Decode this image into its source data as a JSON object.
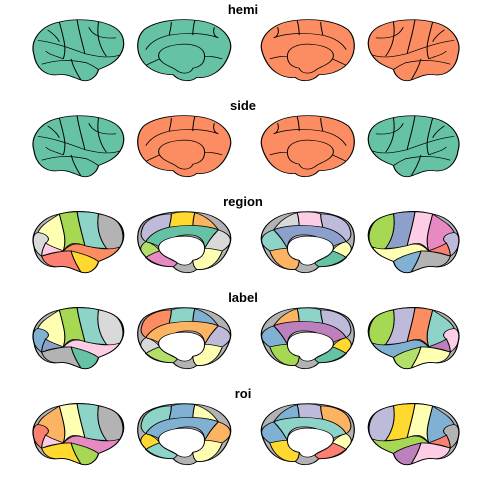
{
  "figure": {
    "rows": [
      {
        "title": "hemi",
        "views": [
          "lateral-left",
          "medial-left",
          "medial-right",
          "lateral-right"
        ],
        "scheme": "hemi"
      },
      {
        "title": "side",
        "views": [
          "lateral-left",
          "medial-left",
          "medial-right",
          "lateral-right"
        ],
        "scheme": "side"
      },
      {
        "title": "region",
        "views": [
          "lateral-left",
          "medial-left",
          "medial-right",
          "lateral-right"
        ],
        "scheme": "parcel"
      },
      {
        "title": "label",
        "views": [
          "lateral-left",
          "medial-left",
          "medial-right",
          "lateral-right"
        ],
        "scheme": "parcel"
      },
      {
        "title": "roi",
        "views": [
          "lateral-left",
          "medial-left",
          "medial-right",
          "lateral-right"
        ],
        "scheme": "parcel"
      }
    ]
  },
  "colors": {
    "left_hemi": "#66c2a5",
    "right_hemi": "#fc8d62",
    "outline": "#000000",
    "medial_wall": "#ffffff",
    "palette": [
      "#66c2a5",
      "#fc8d62",
      "#8da0cb",
      "#e78ac3",
      "#a6d854",
      "#ffd92f",
      "#e5c494",
      "#b3b3b3",
      "#8dd3c7",
      "#ffffb3",
      "#bebada",
      "#fb8072",
      "#80b1d3",
      "#fdb462",
      "#b3de69",
      "#fccde5",
      "#d9d9d9",
      "#bc80bd"
    ]
  }
}
